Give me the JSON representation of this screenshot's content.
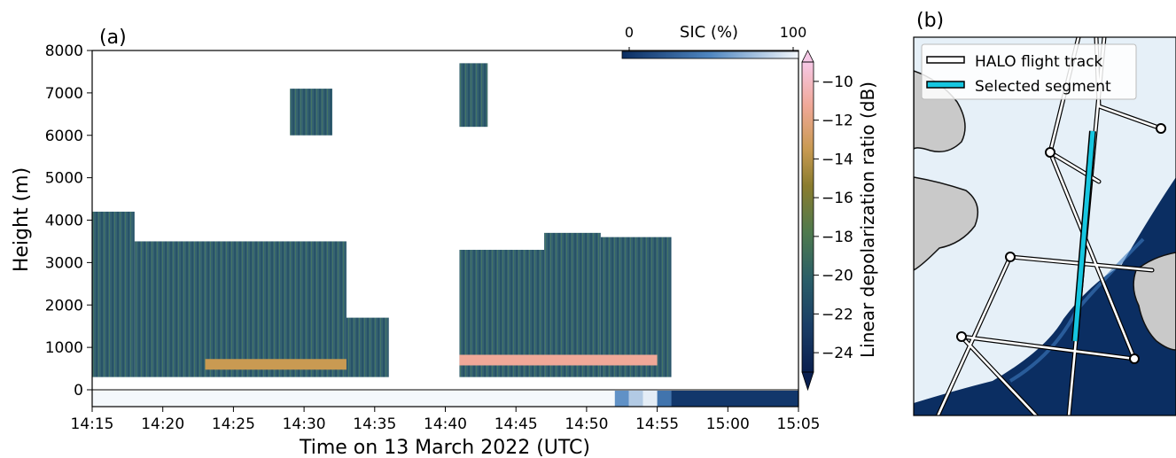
{
  "panel_a": {
    "label": "(a)",
    "ylabel": "Height (m)",
    "xlabel": "Time on 13 March 2022 (UTC)",
    "cbar_label": "Linear depolarization ratio (dB)",
    "sic_label": "SIC (%)",
    "sic_min_label": "0",
    "sic_max_label": "100"
  },
  "panel_b": {
    "label": "(b)",
    "legend": [
      "HALO flight track",
      "Selected segment"
    ]
  },
  "colors": {
    "cmap": [
      "#0a1f4f",
      "#1a3e66",
      "#2a5e68",
      "#4e7a4e",
      "#8a7c2e",
      "#c99a52",
      "#f0a898",
      "#f6c8e6"
    ],
    "sea_ice": "#e6f0f8",
    "open_water": "#0b2e62",
    "land": "#c9c9c9",
    "track": "#ffffff",
    "selected": "#16c6e0"
  },
  "chart_data": [
    {
      "type": "heatmap",
      "title": "",
      "xlabel": "Time on 13 March 2022 (UTC)",
      "ylabel": "Height (m)",
      "xlim": [
        "14:15",
        "15:05"
      ],
      "ylim": [
        -400,
        8000
      ],
      "x_ticks": [
        "14:15",
        "14:20",
        "14:25",
        "14:30",
        "14:35",
        "14:40",
        "14:45",
        "14:50",
        "14:55",
        "15:00",
        "15:05"
      ],
      "y_ticks": [
        0,
        1000,
        2000,
        3000,
        4000,
        5000,
        6000,
        7000,
        8000
      ],
      "colorbar": {
        "label": "Linear depolarization ratio (dB)",
        "range": [
          -25,
          -9
        ],
        "ticks": [
          -10,
          -12,
          -14,
          -16,
          -18,
          -20,
          -22,
          -24
        ]
      },
      "cloud_regions": [
        {
          "t_start": "14:15",
          "t_end": "14:18",
          "base_m": 300,
          "top_m": 4200,
          "ldr_db": -21
        },
        {
          "t_start": "14:18",
          "t_end": "14:23",
          "base_m": 300,
          "top_m": 3500,
          "ldr_db": -21
        },
        {
          "t_start": "14:23",
          "t_end": "14:33",
          "base_m": 300,
          "top_m": 3500,
          "ldr_db": -21
        },
        {
          "t_start": "14:33",
          "t_end": "14:36",
          "base_m": 300,
          "top_m": 1700,
          "ldr_db": -21
        },
        {
          "t_start": "14:41",
          "t_end": "14:47",
          "base_m": 300,
          "top_m": 3300,
          "ldr_db": -21
        },
        {
          "t_start": "14:47",
          "t_end": "14:51",
          "base_m": 300,
          "top_m": 3700,
          "ldr_db": -21
        },
        {
          "t_start": "14:51",
          "t_end": "14:56",
          "base_m": 300,
          "top_m": 3600,
          "ldr_db": -21
        },
        {
          "t_start": "14:29",
          "t_end": "14:32",
          "base_m": 6000,
          "top_m": 7100,
          "ldr_db": -21
        },
        {
          "t_start": "14:41",
          "t_end": "14:43",
          "base_m": 6200,
          "top_m": 7700,
          "ldr_db": -21
        }
      ],
      "melting_layers": [
        {
          "t_start": "14:23",
          "t_end": "14:33",
          "height_m": 600,
          "ldr_db": -13
        },
        {
          "t_start": "14:41",
          "t_end": "14:55",
          "height_m": 700,
          "ldr_db": -11
        }
      ],
      "sic_strip": [
        {
          "t_start": "14:15",
          "t_end": "14:52",
          "sic_pct": 100
        },
        {
          "t_start": "14:52",
          "t_end": "14:53",
          "sic_pct": 55
        },
        {
          "t_start": "14:53",
          "t_end": "14:54",
          "sic_pct": 80
        },
        {
          "t_start": "14:54",
          "t_end": "14:55",
          "sic_pct": 95
        },
        {
          "t_start": "14:55",
          "t_end": "14:56",
          "sic_pct": 40
        },
        {
          "t_start": "14:56",
          "t_end": "15:05",
          "sic_pct": 5
        }
      ]
    }
  ]
}
